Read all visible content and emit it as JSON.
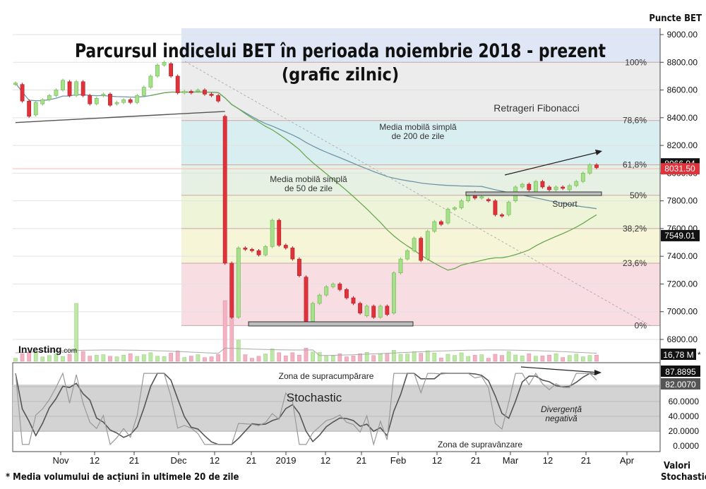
{
  "title": "Parcursul indicelui BET în perioada noiembrie 2018 - prezent",
  "subtitle": "(grafic zilnic)",
  "brand": "Investing",
  "brand_suffix": ".com",
  "right_axis_label": "Puncte BET",
  "stoch_axis_label_1": "Valori",
  "stoch_axis_label_2": "Stochastic",
  "footnote": "* Media volumului de acțiuni în ultimele 20 de zile",
  "colors": {
    "up": "#a6e08a",
    "down": "#e0323a",
    "ma50": "#6aa84f",
    "ma200": "#5b8fa0",
    "ma_long": "#555555"
  },
  "chart_data": [
    {
      "type": "candlestick",
      "ylabel": "Puncte BET",
      "ylim": [
        6800,
        9000
      ],
      "y_ticks": [
        "9000.00",
        "8800.00",
        "8600.00",
        "8400.00",
        "8200.00",
        "8000.00",
        "7800.00",
        "7600.00",
        "7400.00",
        "7200.00",
        "7000.00",
        "6800.00"
      ],
      "x_ticks": [
        "Nov",
        "12",
        "21",
        "Dec",
        "12",
        "21",
        "2019",
        "12",
        "21",
        "Feb",
        "12",
        "21",
        "Mar",
        "12",
        "21",
        "Apr"
      ],
      "price_tags": [
        {
          "label": "8066.94",
          "value": 8066.94,
          "style": "dark"
        },
        {
          "label": "8031.50",
          "value": 8031.5,
          "style": "red"
        },
        {
          "label": "7549.01",
          "value": 7549.01,
          "style": "dark"
        }
      ],
      "fibonacci": {
        "title": "Retrageri Fibonacci",
        "levels": [
          {
            "label": "100%",
            "value": 8800
          },
          {
            "label": "78,6%",
            "value": 8380
          },
          {
            "label": "61,8%",
            "value": 8060
          },
          {
            "label": "50%",
            "value": 7840
          },
          {
            "label": "38,2%",
            "value": 7600
          },
          {
            "label": "23,6%",
            "value": 7350
          },
          {
            "label": "0%",
            "value": 6900
          }
        ]
      },
      "annotations": {
        "ma200": "Media mobilă simplă de 200 de zile",
        "ma50": "Media mobilă simplă de 50 de zile",
        "support": "Suport"
      },
      "candles": [
        {
          "o": 8640,
          "c": 8650
        },
        {
          "o": 8640,
          "c": 8520
        },
        {
          "o": 8520,
          "c": 8410
        },
        {
          "o": 8420,
          "c": 8510
        },
        {
          "o": 8500,
          "c": 8530
        },
        {
          "o": 8530,
          "c": 8560
        },
        {
          "o": 8560,
          "c": 8600
        },
        {
          "o": 8600,
          "c": 8670
        },
        {
          "o": 8660,
          "c": 8560
        },
        {
          "o": 8560,
          "c": 8660
        },
        {
          "o": 8660,
          "c": 8560
        },
        {
          "o": 8560,
          "c": 8500
        },
        {
          "o": 8500,
          "c": 8540
        },
        {
          "o": 8560,
          "c": 8570
        },
        {
          "o": 8570,
          "c": 8490
        },
        {
          "o": 8500,
          "c": 8510
        },
        {
          "o": 8510,
          "c": 8530
        },
        {
          "o": 8530,
          "c": 8510
        },
        {
          "o": 8510,
          "c": 8560
        },
        {
          "o": 8560,
          "c": 8620
        },
        {
          "o": 8620,
          "c": 8700
        },
        {
          "o": 8700,
          "c": 8780
        },
        {
          "o": 8780,
          "c": 8800
        },
        {
          "o": 8790,
          "c": 8700
        },
        {
          "o": 8700,
          "c": 8580
        },
        {
          "o": 8580,
          "c": 8590
        },
        {
          "o": 8590,
          "c": 8580
        },
        {
          "o": 8590,
          "c": 8600
        },
        {
          "o": 8600,
          "c": 8570
        },
        {
          "o": 8570,
          "c": 8560
        },
        {
          "o": 8560,
          "c": 8520
        },
        {
          "o": 8410,
          "c": 7350
        },
        {
          "o": 7350,
          "c": 6960
        },
        {
          "o": 6960,
          "c": 7460
        },
        {
          "o": 7460,
          "c": 7450
        },
        {
          "o": 7450,
          "c": 7440
        },
        {
          "o": 7440,
          "c": 7410
        },
        {
          "o": 7410,
          "c": 7470
        },
        {
          "o": 7470,
          "c": 7660
        },
        {
          "o": 7660,
          "c": 7480
        },
        {
          "o": 7480,
          "c": 7460
        },
        {
          "o": 7460,
          "c": 7380
        },
        {
          "o": 7380,
          "c": 7260
        },
        {
          "o": 7250,
          "c": 6930
        },
        {
          "o": 6930,
          "c": 7060
        },
        {
          "o": 7060,
          "c": 7120
        },
        {
          "o": 7120,
          "c": 7180
        },
        {
          "o": 7180,
          "c": 7200
        },
        {
          "o": 7200,
          "c": 7160
        },
        {
          "o": 7160,
          "c": 7100
        },
        {
          "o": 7100,
          "c": 7060
        },
        {
          "o": 7060,
          "c": 6990
        },
        {
          "o": 6970,
          "c": 7040
        },
        {
          "o": 7040,
          "c": 6960
        },
        {
          "o": 6960,
          "c": 7040
        },
        {
          "o": 7040,
          "c": 6980
        },
        {
          "o": 6990,
          "c": 7280
        },
        {
          "o": 7280,
          "c": 7380
        },
        {
          "o": 7380,
          "c": 7440
        },
        {
          "o": 7440,
          "c": 7530
        },
        {
          "o": 7530,
          "c": 7370
        },
        {
          "o": 7380,
          "c": 7580
        },
        {
          "o": 7580,
          "c": 7650
        },
        {
          "o": 7650,
          "c": 7630
        },
        {
          "o": 7640,
          "c": 7740
        },
        {
          "o": 7740,
          "c": 7750
        },
        {
          "o": 7750,
          "c": 7800
        },
        {
          "o": 7800,
          "c": 7850
        },
        {
          "o": 7860,
          "c": 7820
        },
        {
          "o": 7820,
          "c": 7830
        },
        {
          "o": 7810,
          "c": 7800
        },
        {
          "o": 7800,
          "c": 7700
        },
        {
          "o": 7700,
          "c": 7690
        },
        {
          "o": 7700,
          "c": 7790
        },
        {
          "o": 7800,
          "c": 7900
        },
        {
          "o": 7900,
          "c": 7920
        },
        {
          "o": 7920,
          "c": 7880
        },
        {
          "o": 7860,
          "c": 7940
        },
        {
          "o": 7940,
          "c": 7900
        },
        {
          "o": 7900,
          "c": 7880
        },
        {
          "o": 7880,
          "c": 7900
        },
        {
          "o": 7900,
          "c": 7890
        },
        {
          "o": 7880,
          "c": 7910
        },
        {
          "o": 7910,
          "c": 7940
        },
        {
          "o": 7940,
          "c": 8000
        },
        {
          "o": 8000,
          "c": 8060
        },
        {
          "o": 8060,
          "c": 8040
        }
      ]
    },
    {
      "type": "bar",
      "name": "volume",
      "label": "16,78 M",
      "label_suffix": "*"
    },
    {
      "type": "line",
      "name": "Stochastic",
      "ylim": [
        0,
        100
      ],
      "y_ticks": [
        "80.0000",
        "60.0000",
        "40.0000",
        "20.0000",
        "0.0000"
      ],
      "value_tags": [
        "87.8895",
        "82.0070"
      ],
      "zones": {
        "overbought": "Zona de supracumpărare",
        "oversold": "Zona de supravânzare"
      },
      "label": "Stochastic",
      "divergence": "Divergență negativă"
    }
  ]
}
